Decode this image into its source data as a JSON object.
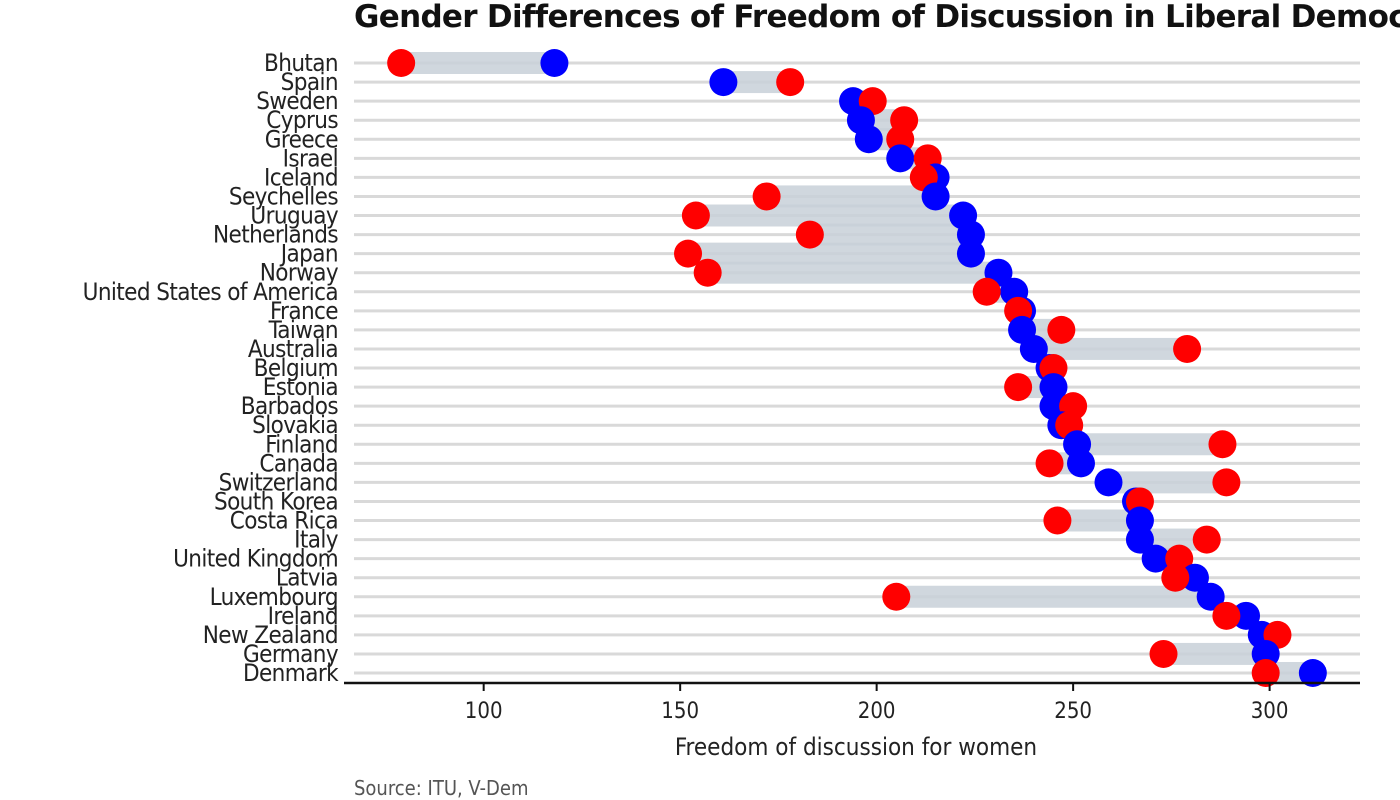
{
  "chart_data": {
    "type": "dumbbell",
    "title": "Gender Differences of Freedom of Discussion in Liberal Democracies",
    "xlabel": "Freedom of discussion for women",
    "ylabel": "",
    "xlim": [
      67,
      323
    ],
    "x_ticks": [
      100,
      150,
      200,
      250,
      300
    ],
    "grid": true,
    "legend": "none",
    "source": "Source: ITU, V-Dem",
    "series": [
      {
        "key": "blue",
        "color": "#0000ff"
      },
      {
        "key": "red",
        "color": "#ff0000"
      }
    ],
    "categories": [
      "Bhutan",
      "Spain",
      "Sweden",
      "Cyprus",
      "Greece",
      "Israel",
      "Iceland",
      "Seychelles",
      "Uruguay",
      "Netherlands",
      "Japan",
      "Norway",
      "United States of America",
      "France",
      "Taiwan",
      "Australia",
      "Belgium",
      "Estonia",
      "Barbados",
      "Slovakia",
      "Finland",
      "Canada",
      "Switzerland",
      "South Korea",
      "Costa Rica",
      "Italy",
      "United Kingdom",
      "Latvia",
      "Luxembourg",
      "Ireland",
      "New Zealand",
      "Germany",
      "Denmark"
    ],
    "blue_values": [
      118,
      161,
      194,
      196,
      198,
      206,
      215,
      215,
      222,
      224,
      224,
      231,
      235,
      237,
      237,
      240,
      244,
      245,
      245,
      247,
      251,
      252,
      259,
      266,
      267,
      267,
      271,
      281,
      285,
      294,
      298,
      299,
      311
    ],
    "red_values": [
      79,
      178,
      199,
      207,
      206,
      213,
      212,
      172,
      154,
      183,
      152,
      157,
      228,
      236,
      247,
      279,
      245,
      236,
      250,
      249,
      288,
      244,
      289,
      267,
      246,
      284,
      277,
      276,
      205,
      289,
      302,
      273,
      299
    ]
  }
}
